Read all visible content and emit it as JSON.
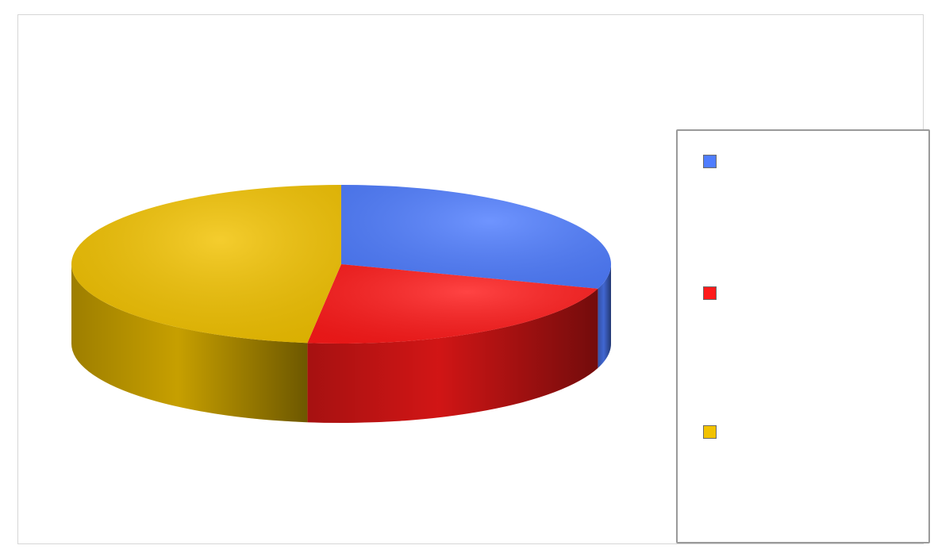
{
  "chart_data": {
    "type": "pie",
    "title": "",
    "start_angle_deg": 0,
    "legend_position": "right",
    "slices": [
      {
        "name": "",
        "value": 30,
        "label": "",
        "color": "#4f7dff"
      },
      {
        "name": "",
        "value": 22,
        "label": "",
        "color": "#ff1a1a"
      },
      {
        "name": "",
        "value": 48,
        "label": "",
        "color": "#f2c200"
      }
    ]
  }
}
